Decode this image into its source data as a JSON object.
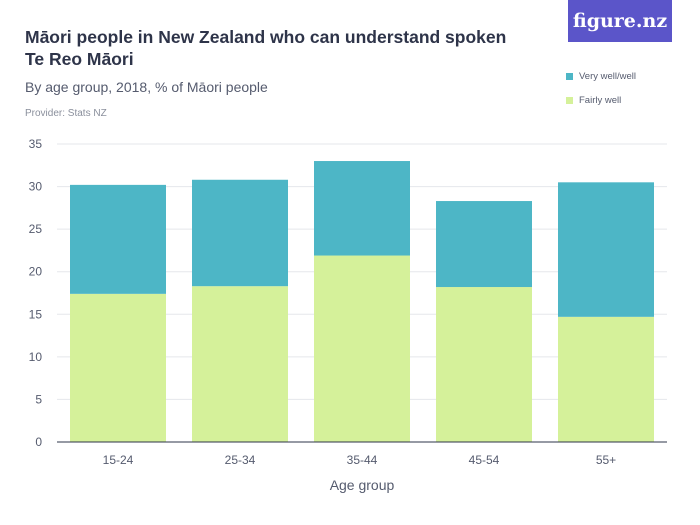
{
  "header": {
    "title": "Māori people in New Zealand who can understand spoken Te Reo Māori",
    "subtitle": "By age group, 2018, % of Māori people",
    "provider": "Provider: Stats NZ",
    "logo": "figure.nz"
  },
  "colors": {
    "very_well": "#4db6c6",
    "fairly_well": "#d5f19a",
    "grid": "#e5e7eb",
    "text": "#555b6e",
    "axis": "#2e3449"
  },
  "chart_data": {
    "type": "bar",
    "stacked": true,
    "categories": [
      "15-24",
      "25-34",
      "35-44",
      "45-54",
      "55+"
    ],
    "series": [
      {
        "name": "Fairly well",
        "values": [
          17.4,
          18.3,
          21.9,
          18.2,
          14.7
        ]
      },
      {
        "name": "Very well/well",
        "values": [
          12.8,
          12.5,
          11.1,
          10.1,
          15.8
        ]
      }
    ],
    "xlabel": "Age group",
    "ylabel": "",
    "ylim": [
      0,
      35
    ],
    "yticks": [
      0,
      5,
      10,
      15,
      20,
      25,
      30,
      35
    ],
    "grid": true,
    "legend": "top-right"
  }
}
